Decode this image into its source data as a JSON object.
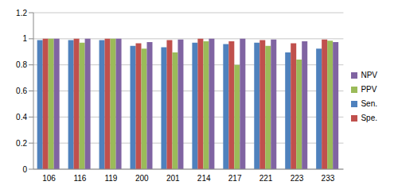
{
  "chart_data": {
    "type": "bar",
    "categories": [
      "106",
      "116",
      "119",
      "200",
      "201",
      "214",
      "217",
      "221",
      "223",
      "233"
    ],
    "series": [
      {
        "name": "Sen.",
        "color": "#4f81bd",
        "values": [
          0.99,
          0.99,
          0.99,
          0.945,
          0.935,
          0.97,
          0.96,
          0.97,
          0.895,
          0.925
        ]
      },
      {
        "name": "Spe.",
        "color": "#c0504d",
        "values": [
          1.0,
          1.0,
          1.0,
          0.965,
          0.99,
          1.0,
          0.98,
          0.99,
          0.965,
          0.995
        ]
      },
      {
        "name": "PPV",
        "color": "#9bbb59",
        "values": [
          1.0,
          0.97,
          1.0,
          0.925,
          0.895,
          0.98,
          0.8,
          0.945,
          0.84,
          0.985
        ]
      },
      {
        "name": "NPV",
        "color": "#8064a2",
        "values": [
          1.0,
          1.0,
          1.0,
          0.975,
          0.995,
          1.0,
          1.0,
          0.995,
          0.98,
          0.975
        ]
      }
    ],
    "ylim": [
      0,
      1.2
    ],
    "yticks": [
      0,
      0.2,
      0.4,
      0.6,
      0.8,
      1,
      1.2
    ],
    "grid": true,
    "legend": "right"
  }
}
